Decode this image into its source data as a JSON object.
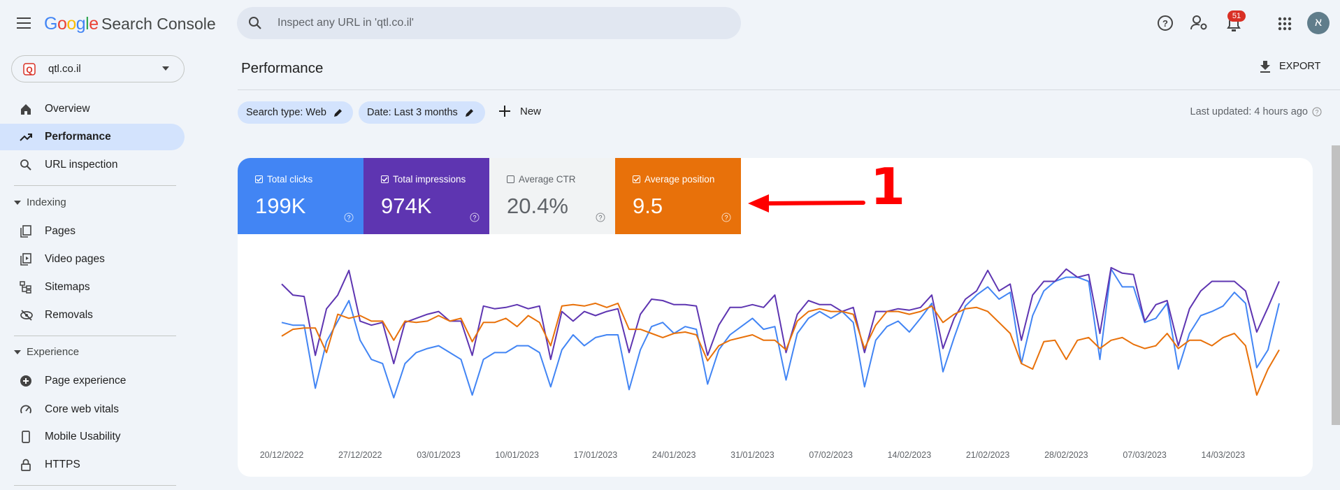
{
  "header": {
    "logo": "Google",
    "product": "Search Console",
    "search_placeholder": "Inspect any URL in 'qtl.co.il'",
    "notification_count": "51",
    "avatar": "א"
  },
  "sidebar": {
    "property": "qtl.co.il",
    "items": [
      "Overview",
      "Performance",
      "URL inspection"
    ],
    "sections": [
      {
        "title": "Indexing",
        "items": [
          "Pages",
          "Video pages",
          "Sitemaps",
          "Removals"
        ]
      },
      {
        "title": "Experience",
        "items": [
          "Page experience",
          "Core web vitals",
          "Mobile Usability",
          "HTTPS"
        ]
      }
    ]
  },
  "main": {
    "title": "Performance",
    "export": "EXPORT",
    "filters": [
      "Search type: Web",
      "Date: Last 3 months"
    ],
    "new": "New",
    "last_updated": "Last updated: 4 hours ago"
  },
  "metrics": [
    {
      "label": "Total clicks",
      "value": "199K",
      "color": "#4285f4",
      "checked": true
    },
    {
      "label": "Total impressions",
      "value": "974K",
      "color": "#5e35b1",
      "checked": true
    },
    {
      "label": "Average CTR",
      "value": "20.4%",
      "color": "#f1f3f4",
      "checked": false
    },
    {
      "label": "Average position",
      "value": "9.5",
      "color": "#e8710a",
      "checked": true
    }
  ],
  "annotation": "1",
  "chart_data": {
    "type": "line",
    "categories": [
      "20/12/2022",
      null,
      null,
      null,
      null,
      null,
      null,
      "27/12/2022",
      null,
      null,
      null,
      null,
      null,
      null,
      "03/01/2023",
      null,
      null,
      null,
      null,
      null,
      null,
      "10/01/2023",
      null,
      null,
      null,
      null,
      null,
      null,
      "17/01/2023",
      null,
      null,
      null,
      null,
      null,
      null,
      "24/01/2023",
      null,
      null,
      null,
      null,
      null,
      null,
      "31/01/2023",
      null,
      null,
      null,
      null,
      null,
      null,
      "07/02/2023",
      null,
      null,
      null,
      null,
      null,
      null,
      "14/02/2023",
      null,
      null,
      null,
      null,
      null,
      null,
      "21/02/2023",
      null,
      null,
      null,
      null,
      null,
      null,
      "28/02/2023",
      null,
      null,
      null,
      null,
      null,
      null,
      "07/03/2023",
      null,
      null,
      null,
      null,
      null,
      null,
      "14/03/2023",
      null,
      null,
      null,
      null,
      null
    ],
    "ylim": [
      0,
      100
    ],
    "series": [
      {
        "color": "#4285f4",
        "values": [
          58,
          56,
          56,
          10,
          44,
          59,
          74,
          45,
          31,
          28,
          3,
          28,
          36,
          39,
          41,
          36,
          31,
          5,
          31,
          36,
          36,
          41,
          41,
          36,
          11,
          38,
          49,
          41,
          47,
          49,
          49,
          9,
          38,
          55,
          58,
          50,
          55,
          53,
          13,
          38,
          49,
          55,
          61,
          53,
          55,
          16,
          50,
          61,
          66,
          61,
          66,
          58,
          11,
          45,
          55,
          59,
          51,
          61,
          72,
          22,
          47,
          70,
          78,
          84,
          75,
          80,
          28,
          63,
          81,
          88,
          91,
          91,
          88,
          31,
          97,
          84,
          84,
          58,
          61,
          72,
          24,
          50,
          63,
          66,
          70,
          80,
          72,
          25,
          38,
          72
        ]
      },
      {
        "color": "#5e35b1",
        "values": [
          86,
          78,
          77,
          34,
          68,
          78,
          96,
          59,
          56,
          58,
          28,
          58,
          61,
          64,
          66,
          59,
          59,
          34,
          70,
          68,
          69,
          71,
          68,
          70,
          31,
          66,
          59,
          66,
          63,
          66,
          68,
          36,
          64,
          75,
          74,
          71,
          71,
          70,
          34,
          56,
          69,
          69,
          71,
          69,
          78,
          36,
          64,
          74,
          71,
          71,
          66,
          69,
          36,
          66,
          66,
          68,
          67,
          69,
          78,
          39,
          61,
          75,
          81,
          96,
          81,
          86,
          45,
          78,
          88,
          88,
          97,
          91,
          93,
          50,
          98,
          94,
          93,
          59,
          71,
          74,
          41,
          68,
          81,
          88,
          88,
          88,
          81,
          51,
          69,
          88
        ]
      },
      {
        "color": "#e8710a",
        "values": [
          48,
          53,
          54,
          54,
          36,
          64,
          61,
          63,
          59,
          59,
          45,
          59,
          58,
          59,
          63,
          59,
          61,
          44,
          58,
          58,
          61,
          55,
          63,
          58,
          41,
          70,
          71,
          70,
          72,
          69,
          72,
          53,
          53,
          50,
          47,
          50,
          51,
          49,
          30,
          41,
          45,
          47,
          49,
          45,
          45,
          38,
          59,
          66,
          68,
          66,
          66,
          64,
          39,
          56,
          66,
          66,
          64,
          66,
          70,
          58,
          64,
          68,
          69,
          66,
          58,
          50,
          28,
          24,
          44,
          45,
          31,
          45,
          47,
          39,
          45,
          47,
          42,
          39,
          41,
          50,
          39,
          45,
          45,
          41,
          47,
          50,
          41,
          5,
          24,
          38
        ]
      }
    ]
  }
}
